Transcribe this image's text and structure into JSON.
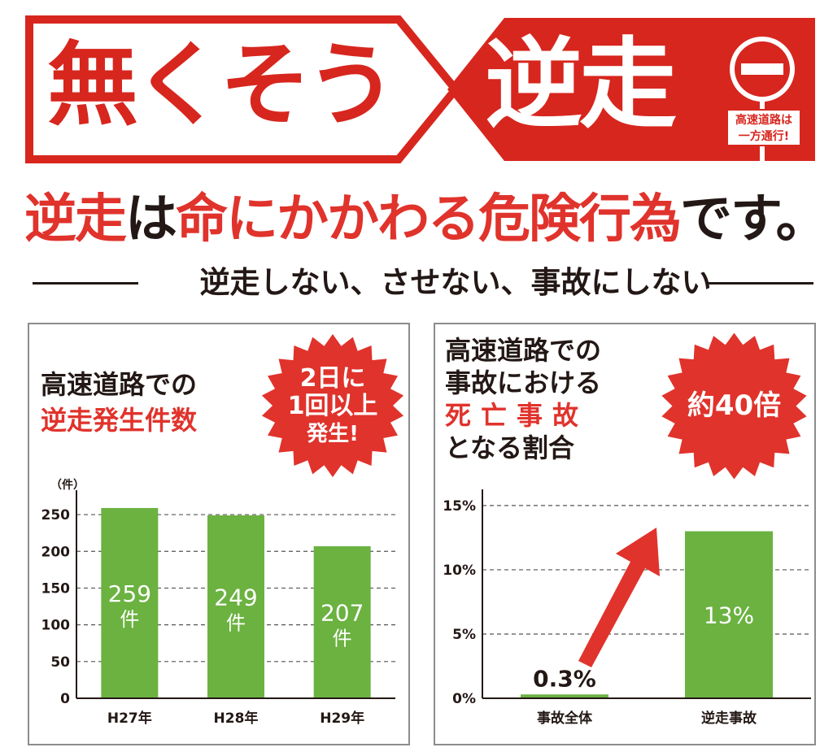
{
  "banner": {
    "left_text": "無くそう",
    "right_text": "逆走",
    "sign_caption_line1": "高速道路は",
    "sign_caption_line2": "一方通行!"
  },
  "headline": {
    "part1": "逆走",
    "part2": "は",
    "part3": "命にかかわる危険行為",
    "part4": "です。"
  },
  "subline": "逆走しない、させない、事故にしない",
  "colors": {
    "red": "#e0332c",
    "banner_red": "#d7261e",
    "bar_green": "#6bb241",
    "text_dark": "#231815",
    "panel_border": "#8c8c8c"
  },
  "left_panel": {
    "title_line1": "高速道路での",
    "title_line2": "逆走発生件数",
    "burst_line1": "2日に",
    "burst_line2": "1回以上",
    "burst_line3": "発生!"
  },
  "right_panel": {
    "title_line1": "高速道路での",
    "title_line2": "事故における",
    "title_line3": "死亡事故",
    "title_line4": "となる割合",
    "burst_text": "約40倍"
  },
  "chart_data": [
    {
      "type": "bar",
      "ylabel": "（件）",
      "categories": [
        "H27年",
        "H28年",
        "H29年"
      ],
      "values": [
        259,
        249,
        207
      ],
      "data_labels": [
        "259",
        "249",
        "207"
      ],
      "data_label_unit": "件",
      "y_ticks": [
        "0",
        "50",
        "100",
        "150",
        "200",
        "250"
      ],
      "y_tick_values": [
        0,
        50,
        100,
        150,
        200,
        250
      ],
      "ylim": [
        0,
        270
      ],
      "grid": true
    },
    {
      "type": "bar",
      "categories": [
        "事故全体",
        "逆走事故"
      ],
      "values": [
        0.3,
        13
      ],
      "data_labels": [
        "0.3%",
        "13%"
      ],
      "y_ticks": [
        "0%",
        "5%",
        "10%",
        "15%"
      ],
      "y_tick_values": [
        0,
        5,
        10,
        15
      ],
      "ylim": [
        0,
        15.5
      ],
      "grid": true,
      "annotation": "arrow from 事故全体 to 逆走事故"
    }
  ]
}
